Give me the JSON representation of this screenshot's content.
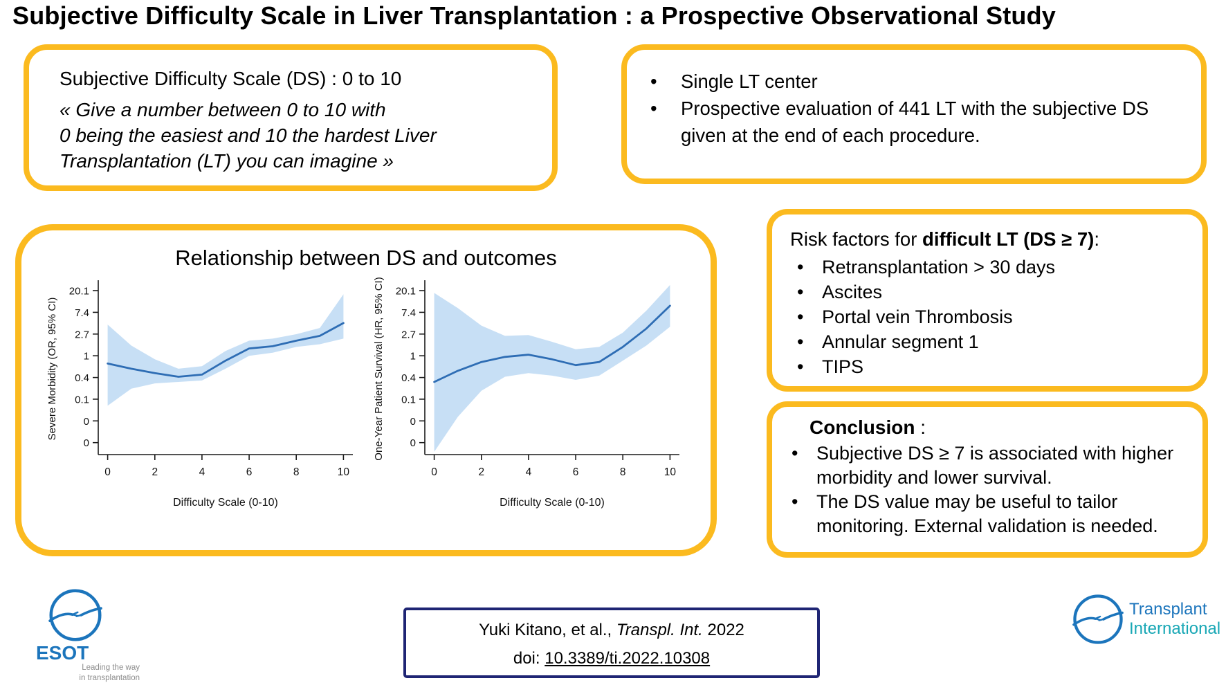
{
  "colors": {
    "gold": "#FBBA1F",
    "navy": "#1F2574",
    "logo_blue": "#1C75BC",
    "teal": "#18A7B5",
    "line_blue": "#2E6DB4",
    "band_blue": "#B9D7F3"
  },
  "title": "Subjective Difficulty Scale in Liver Transplantation  : a Prospective Observational Study",
  "scale_box": {
    "heading": "Subjective Difficulty Scale (DS)  : 0 to 10",
    "quote_line1": "« Give a number between 0 to 10 with",
    "quote_line2": "0 being the easiest and 10 the hardest Liver",
    "quote_line3": "Transplantation (LT) you can imagine »"
  },
  "methods_box": {
    "items": [
      "Single LT center",
      "Prospective evaluation of 441 LT with the subjective DS given at the end of each procedure."
    ]
  },
  "results_box": {
    "title": "Relationship between DS and outcomes"
  },
  "risk_box": {
    "heading_prefix": "Risk factors for ",
    "heading_bold": "difficult LT (DS ≥ 7)",
    "heading_suffix": ":",
    "items": [
      "Retransplantation > 30 days",
      "Ascites",
      "Portal vein Thrombosis",
      "Annular segment 1",
      "TIPS"
    ]
  },
  "conclusion_box": {
    "heading_bold": "Conclusion",
    "heading_suffix": " :",
    "items": [
      "Subjective DS ≥ 7 is associated with higher morbidity and lower survival.",
      "The DS value may be useful to tailor monitoring. External validation is needed."
    ]
  },
  "citation": {
    "authors": "Yuki Kitano, et al., ",
    "journal": "Transpl. Int.",
    "year": " 2022",
    "doi_label": "doi: ",
    "doi": "10.3389/ti.2022.10308"
  },
  "logos": {
    "esot": {
      "name": "ESOT",
      "tagline1": "Leading the way",
      "tagline2": "in transplantation"
    },
    "ti": {
      "line1": "Transplant",
      "line2": "International"
    }
  },
  "chart_data": [
    {
      "type": "line",
      "title": "Severe Morbidity vs Difficulty Scale",
      "ylabel": "Severe Morbidity (OR, 95% CI)",
      "xlabel": "Difficulty Scale (0-10)",
      "yscale": "log",
      "ytick_labels": [
        "20.1",
        "7.4",
        "2.7",
        "1",
        "0.4",
        "0.1",
        "0",
        "0"
      ],
      "ytick_ln": [
        3,
        2,
        1,
        0,
        -1,
        -2,
        -3,
        -4
      ],
      "xticks": [
        0,
        2,
        4,
        6,
        8,
        10
      ],
      "y_range_ln": [
        -4.55,
        3.35
      ],
      "x": [
        0,
        1,
        2,
        3,
        4,
        5,
        6,
        7,
        8,
        9,
        10
      ],
      "estimate": [
        0.7,
        0.55,
        0.45,
        0.38,
        0.42,
        0.8,
        1.4,
        1.55,
        2.0,
        2.5,
        4.5
      ],
      "ci_lower": [
        0.1,
        0.22,
        0.28,
        0.3,
        0.32,
        0.55,
        1.0,
        1.15,
        1.5,
        1.7,
        2.2
      ],
      "ci_upper": [
        4.2,
        1.6,
        0.85,
        0.55,
        0.62,
        1.25,
        2.0,
        2.2,
        2.7,
        3.6,
        17
      ],
      "line_color": "#2E6DB4",
      "band_color": "#B9D7F3",
      "grid": false,
      "legend": "none"
    },
    {
      "type": "line",
      "title": "One-Year Patient Survival vs Difficulty Scale",
      "ylabel": "One-Year Patient Survival (HR, 95% CI)",
      "xlabel": "Difficulty Scale (0-10)",
      "yscale": "log",
      "ytick_labels": [
        "20.1",
        "7.4",
        "2.7",
        "1",
        "0.4",
        "0.1",
        "0",
        "0"
      ],
      "ytick_ln": [
        3,
        2,
        1,
        0,
        -1,
        -2,
        -3,
        -4
      ],
      "xticks": [
        0,
        2,
        4,
        6,
        8,
        10
      ],
      "y_range_ln": [
        -4.55,
        3.35
      ],
      "x": [
        0,
        1,
        2,
        3,
        4,
        5,
        6,
        7,
        8,
        9,
        10
      ],
      "estimate": [
        0.3,
        0.5,
        0.75,
        0.95,
        1.05,
        0.85,
        0.65,
        0.75,
        1.5,
        3.5,
        10
      ],
      "ci_lower": [
        0.012,
        0.06,
        0.2,
        0.38,
        0.45,
        0.4,
        0.33,
        0.4,
        0.8,
        1.6,
        3.8
      ],
      "ci_upper": [
        18,
        9,
        4,
        2.5,
        2.6,
        1.9,
        1.35,
        1.5,
        2.9,
        8,
        26
      ],
      "line_color": "#2E6DB4",
      "band_color": "#B9D7F3",
      "grid": false,
      "legend": "none"
    }
  ]
}
